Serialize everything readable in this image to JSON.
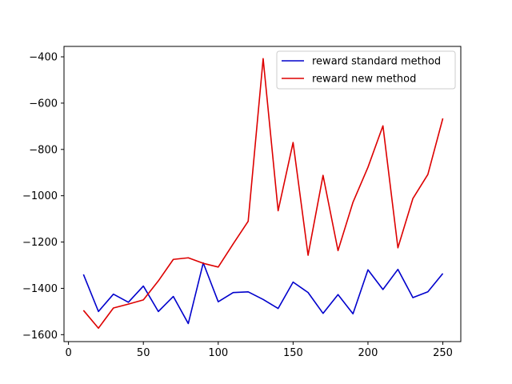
{
  "chart_data": {
    "type": "line",
    "title": "",
    "xlabel": "",
    "ylabel": "",
    "xlim": [
      -3,
      262
    ],
    "ylim": [
      -1630,
      -355
    ],
    "xticks": [
      0,
      50,
      100,
      150,
      200,
      250
    ],
    "yticks": [
      -1600,
      -1400,
      -1200,
      -1000,
      -800,
      -600,
      -400
    ],
    "xtick_labels": [
      "0",
      "50",
      "100",
      "150",
      "200",
      "250"
    ],
    "ytick_labels": [
      "−1600",
      "−1400",
      "−1200",
      "−1000",
      "−800",
      "−600",
      "−400"
    ],
    "grid": false,
    "legend_position": "top-right",
    "x": [
      10,
      20,
      30,
      40,
      50,
      60,
      70,
      80,
      90,
      100,
      110,
      120,
      130,
      140,
      150,
      160,
      170,
      180,
      190,
      200,
      210,
      220,
      230,
      240,
      250
    ],
    "series": [
      {
        "name": "reward standard method",
        "color": "#0000cc",
        "values": [
          -1340,
          -1500,
          -1425,
          -1460,
          -1390,
          -1500,
          -1435,
          -1552,
          -1290,
          -1458,
          -1418,
          -1415,
          -1448,
          -1487,
          -1373,
          -1418,
          -1508,
          -1427,
          -1510,
          -1320,
          -1405,
          -1318,
          -1440,
          -1415,
          -1336
        ]
      },
      {
        "name": "reward new method",
        "color": "#dd0000",
        "values": [
          -1495,
          -1572,
          -1485,
          -1468,
          -1450,
          -1368,
          -1275,
          -1268,
          -1292,
          -1308,
          -1208,
          -1110,
          -408,
          -1065,
          -770,
          -1257,
          -912,
          -1237,
          -1028,
          -877,
          -698,
          -1225,
          -1012,
          -908,
          -666
        ]
      }
    ]
  }
}
